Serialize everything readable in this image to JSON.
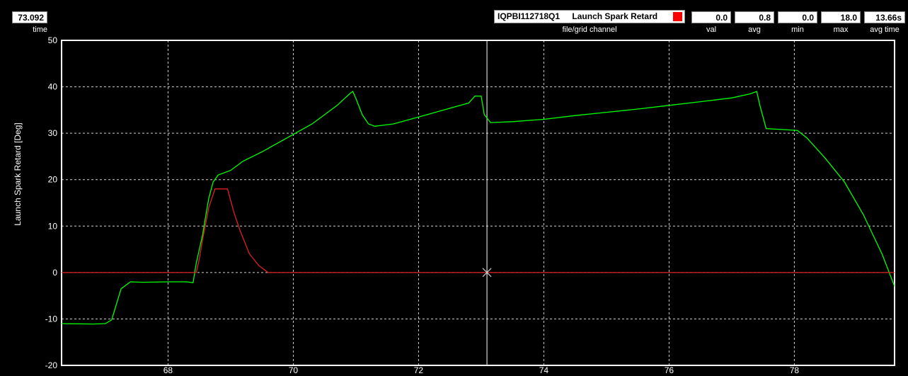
{
  "header": {
    "time_value": "73.092",
    "time_label": "time",
    "channel_file": "IQPBI112718Q1",
    "channel_name": "Launch Spark Retard",
    "channel_caption": "file/grid channel",
    "channel_color": "#ff0000",
    "stats": [
      {
        "label": "val",
        "value": "0.0"
      },
      {
        "label": "avg",
        "value": "0.8"
      },
      {
        "label": "min",
        "value": "0.0"
      },
      {
        "label": "max",
        "value": "18.0"
      },
      {
        "label": "avg time",
        "value": "13.66s"
      }
    ]
  },
  "chart_data": {
    "type": "line",
    "ylabel": "Launch Spark Retard [Deg]",
    "xlim": [
      66.3,
      79.6
    ],
    "ylim": [
      -20,
      50
    ],
    "x_ticks": [
      68,
      70,
      72,
      74,
      76,
      78
    ],
    "y_ticks": [
      -20,
      -10,
      0,
      10,
      20,
      30,
      40,
      50
    ],
    "grid": true,
    "cursor_x": 73.092,
    "cursor_y": 0.0,
    "series": [
      {
        "color": "#00ff00",
        "points": [
          [
            66.3,
            -11.0
          ],
          [
            66.8,
            -11.1
          ],
          [
            67.0,
            -11.0
          ],
          [
            67.1,
            -10.2
          ],
          [
            67.25,
            -3.5
          ],
          [
            67.4,
            -2.0
          ],
          [
            67.6,
            -2.1
          ],
          [
            68.0,
            -2.0
          ],
          [
            68.3,
            -2.0
          ],
          [
            68.4,
            -2.2
          ],
          [
            68.45,
            2.0
          ],
          [
            68.55,
            8.0
          ],
          [
            68.65,
            16.0
          ],
          [
            68.72,
            19.5
          ],
          [
            68.8,
            21.0
          ],
          [
            69.0,
            22.0
          ],
          [
            69.2,
            24.0
          ],
          [
            69.5,
            26.0
          ],
          [
            69.9,
            29.0
          ],
          [
            70.3,
            32.0
          ],
          [
            70.7,
            36.0
          ],
          [
            70.9,
            38.5
          ],
          [
            70.95,
            39.0
          ],
          [
            71.0,
            37.5
          ],
          [
            71.1,
            34.0
          ],
          [
            71.2,
            32.0
          ],
          [
            71.3,
            31.5
          ],
          [
            71.6,
            32.0
          ],
          [
            72.0,
            33.5
          ],
          [
            72.4,
            35.0
          ],
          [
            72.8,
            36.5
          ],
          [
            72.9,
            38.0
          ],
          [
            73.0,
            38.0
          ],
          [
            73.05,
            34.0
          ],
          [
            73.15,
            32.3
          ],
          [
            73.5,
            32.5
          ],
          [
            74.0,
            33.0
          ],
          [
            74.5,
            33.8
          ],
          [
            75.0,
            34.5
          ],
          [
            75.5,
            35.2
          ],
          [
            76.0,
            36.0
          ],
          [
            76.5,
            36.8
          ],
          [
            77.0,
            37.6
          ],
          [
            77.3,
            38.5
          ],
          [
            77.4,
            39.0
          ],
          [
            77.45,
            36.0
          ],
          [
            77.55,
            31.0
          ],
          [
            77.8,
            30.8
          ],
          [
            78.05,
            30.6
          ],
          [
            78.2,
            29.0
          ],
          [
            78.5,
            24.5
          ],
          [
            78.8,
            19.5
          ],
          [
            79.1,
            12.5
          ],
          [
            79.4,
            4.0
          ],
          [
            79.6,
            -3.0
          ],
          [
            79.9,
            -6.0
          ]
        ]
      },
      {
        "color": "#e02020",
        "points": [
          [
            66.3,
            0.0
          ],
          [
            68.45,
            0.0
          ],
          [
            68.5,
            3.0
          ],
          [
            68.55,
            7.0
          ],
          [
            68.65,
            14.0
          ],
          [
            68.75,
            18.0
          ],
          [
            68.95,
            18.0
          ],
          [
            69.05,
            13.0
          ],
          [
            69.15,
            9.0
          ],
          [
            69.3,
            4.0
          ],
          [
            69.45,
            1.5
          ],
          [
            69.6,
            0.0
          ],
          [
            79.9,
            0.0
          ]
        ]
      }
    ]
  }
}
